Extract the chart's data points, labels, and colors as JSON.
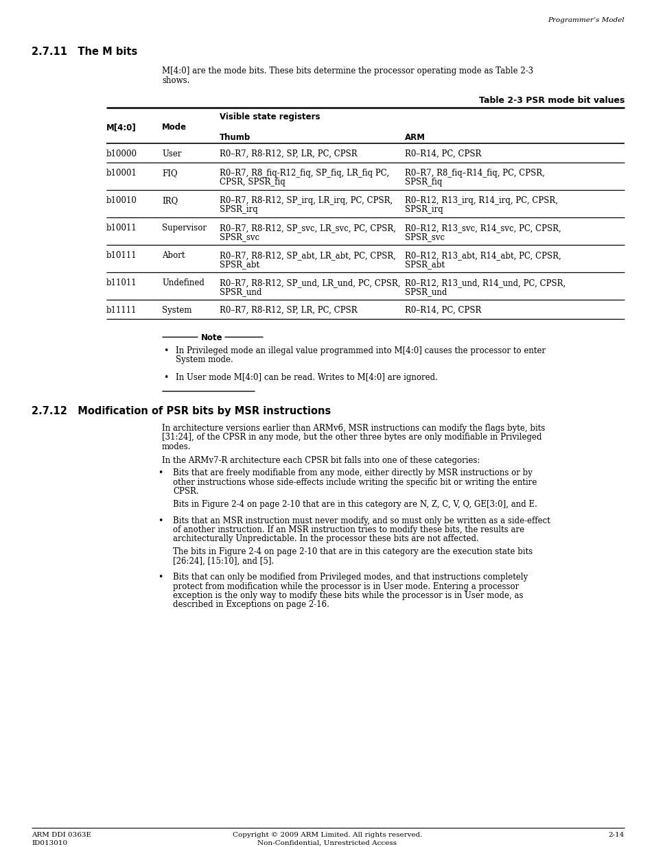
{
  "page_header_right": "Programmer’s Model",
  "section_title": "2.7.11   The M bits",
  "section_body_line1": "M[4:0] are the mode bits. These bits determine the processor operating mode as Table 2-3",
  "section_body_line2": "shows.",
  "table_title": "Table 2-3 PSR mode bit values",
  "table_subheader": "Visible state registers",
  "col_headers": [
    "M[4:0]",
    "Mode",
    "Thumb",
    "ARM"
  ],
  "table_rows": [
    [
      "b10000",
      "User",
      "R0–R7, R8-R12, SP, LR, PC, CPSR",
      "R0–R14, PC, CPSR"
    ],
    [
      "b10001",
      "FIQ",
      "R0–R7, R8_fiq-R12_fiq, SP_fiq, LR_fiq PC,\nCPSR, SPSR_fiq",
      "R0–R7, R8_fiq–R14_fiq, PC, CPSR,\nSPSR_fiq"
    ],
    [
      "b10010",
      "IRQ",
      "R0–R7, R8-R12, SP_irq, LR_irq, PC, CPSR,\nSPSR_irq",
      "R0–R12, R13_irq, R14_irq, PC, CPSR,\nSPSR_irq"
    ],
    [
      "b10011",
      "Supervisor",
      "R0–R7, R8-R12, SP_svc, LR_svc, PC, CPSR,\nSPSR_svc",
      "R0–R12, R13_svc, R14_svc, PC, CPSR,\nSPSR_svc"
    ],
    [
      "b10111",
      "Abort",
      "R0–R7, R8-R12, SP_abt, LR_abt, PC, CPSR,\nSPSR_abt",
      "R0–R12, R13_abt, R14_abt, PC, CPSR,\nSPSR_abt"
    ],
    [
      "b11011",
      "Undefined",
      "R0–R7, R8-R12, SP_und, LR_und, PC, CPSR,\nSPSR_und",
      "R0–R12, R13_und, R14_und, PC, CPSR,\nSPSR_und"
    ],
    [
      "b11111",
      "System",
      "R0–R7, R8-R12, SP, LR, PC, CPSR",
      "R0–R14, PC, CPSR"
    ]
  ],
  "note_title": "Note",
  "note_bullets": [
    "In Privileged mode an illegal value programmed into M[4:0] causes the processor to enter\nSystem mode.",
    "In User mode M[4:0] can be read. Writes to M[4:0] are ignored."
  ],
  "section2_title": "2.7.12   Modification of PSR bits by MSR instructions",
  "section2_para1_lines": [
    "In architecture versions earlier than ARMv6, MSR instructions can modify the flags byte, bits",
    "[31:24], of the CPSR in any mode, but the other three bytes are only modifiable in Privileged",
    "modes."
  ],
  "section2_para2": "In the ARMv7-R architecture each CPSR bit falls into one of these categories:",
  "section2_bullets": [
    {
      "main_lines": [
        "Bits that are freely modifiable from any mode, either directly by MSR instructions or by",
        "other instructions whose side-effects include writing the specific bit or writing the entire",
        "CPSR."
      ],
      "sub_lines": [
        "Bits in Figure 2-4 on page 2-10 that are in this category are N, Z, C, V, Q, GE[3:0], and E."
      ]
    },
    {
      "main_lines": [
        "Bits that an MSR instruction must never modify, and so must only be written as a side-effect",
        "of another instruction. If an MSR instruction tries to modify these bits, the results are",
        "architecturally Unpredictable. In the processor these bits are not affected."
      ],
      "sub_lines": [
        "The bits in Figure 2-4 on page 2-10 that are in this category are the execution state bits",
        "[26:24], [15:10], and [5]."
      ]
    },
    {
      "main_lines": [
        "Bits that can only be modified from Privileged modes, and that instructions completely",
        "protect from modification while the processor is in User mode. Entering a processor",
        "exception is the only way to modify these bits while the processor is in User mode, as",
        "described in Exceptions on page 2-16."
      ],
      "sub_lines": []
    }
  ],
  "footer_left1": "ARM DDI 0363E",
  "footer_left2": "ID013010",
  "footer_center1": "Copyright © 2009 ARM Limited. All rights reserved.",
  "footer_center2": "Non-Confidential, Unrestricted Access",
  "footer_right": "2-14",
  "bg_color": "#ffffff"
}
